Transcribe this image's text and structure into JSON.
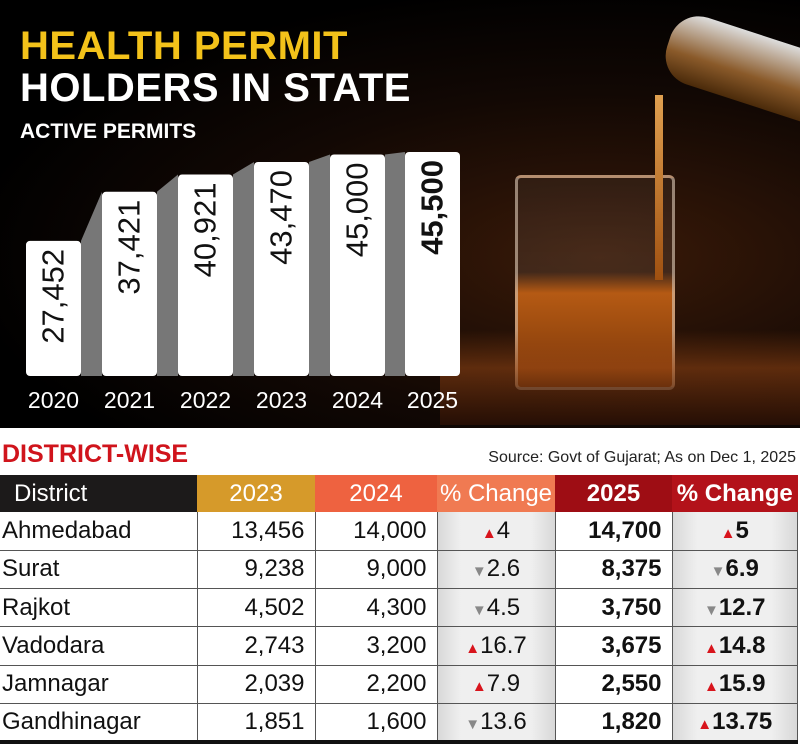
{
  "header": {
    "title_line1": "HEALTH PERMIT",
    "title_line2": "HOLDERS IN STATE",
    "subtitle": "ACTIVE PERMITS"
  },
  "chart_data": {
    "type": "bar",
    "title": "HEALTH PERMIT HOLDERS IN STATE",
    "subtitle": "ACTIVE PERMITS",
    "categories": [
      "2020",
      "2021",
      "2022",
      "2023",
      "2024",
      "2025"
    ],
    "values": [
      27452,
      37421,
      40921,
      43470,
      45000,
      45500
    ],
    "labels": [
      "27,452",
      "37,421",
      "40,921",
      "43,470",
      "45,000",
      "45,500"
    ],
    "ylim": [
      0,
      45500
    ],
    "grid": false,
    "bar_color": "#ffffff",
    "connector_color": "#777777"
  },
  "table": {
    "title": "DISTRICT-WISE",
    "source": "Source: Govt of Gujarat; As on Dec 1, 2025",
    "headers": [
      "District",
      "2023",
      "2024",
      "% Change",
      "2025",
      "% Change"
    ],
    "rows": [
      {
        "district": "Ahmedabad",
        "y2023": "13,456",
        "y2024": "14,000",
        "chg1": "4",
        "dir1": "up",
        "y2025": "14,700",
        "chg2": "5",
        "dir2": "up"
      },
      {
        "district": "Surat",
        "y2023": "9,238",
        "y2024": "9,000",
        "chg1": "2.6",
        "dir1": "down",
        "y2025": "8,375",
        "chg2": "6.9",
        "dir2": "down"
      },
      {
        "district": "Rajkot",
        "y2023": "4,502",
        "y2024": "4,300",
        "chg1": "4.5",
        "dir1": "down",
        "y2025": "3,750",
        "chg2": "12.7",
        "dir2": "down"
      },
      {
        "district": "Vadodara",
        "y2023": "2,743",
        "y2024": "3,200",
        "chg1": "16.7",
        "dir1": "up",
        "y2025": "3,675",
        "chg2": "14.8",
        "dir2": "up"
      },
      {
        "district": "Jamnagar",
        "y2023": "2,039",
        "y2024": "2,200",
        "chg1": "7.9",
        "dir1": "up",
        "y2025": "2,550",
        "chg2": "15.9",
        "dir2": "up"
      },
      {
        "district": "Gandhinagar",
        "y2023": "1,851",
        "y2024": "1,600",
        "chg1": "13.6",
        "dir1": "down",
        "y2025": "1,820",
        "chg2": "13.75",
        "dir2": "up"
      }
    ]
  },
  "colors": {
    "title_yellow": "#f3c21a",
    "district_red": "#d0141c",
    "up": "#d8141c",
    "down": "#888888"
  }
}
